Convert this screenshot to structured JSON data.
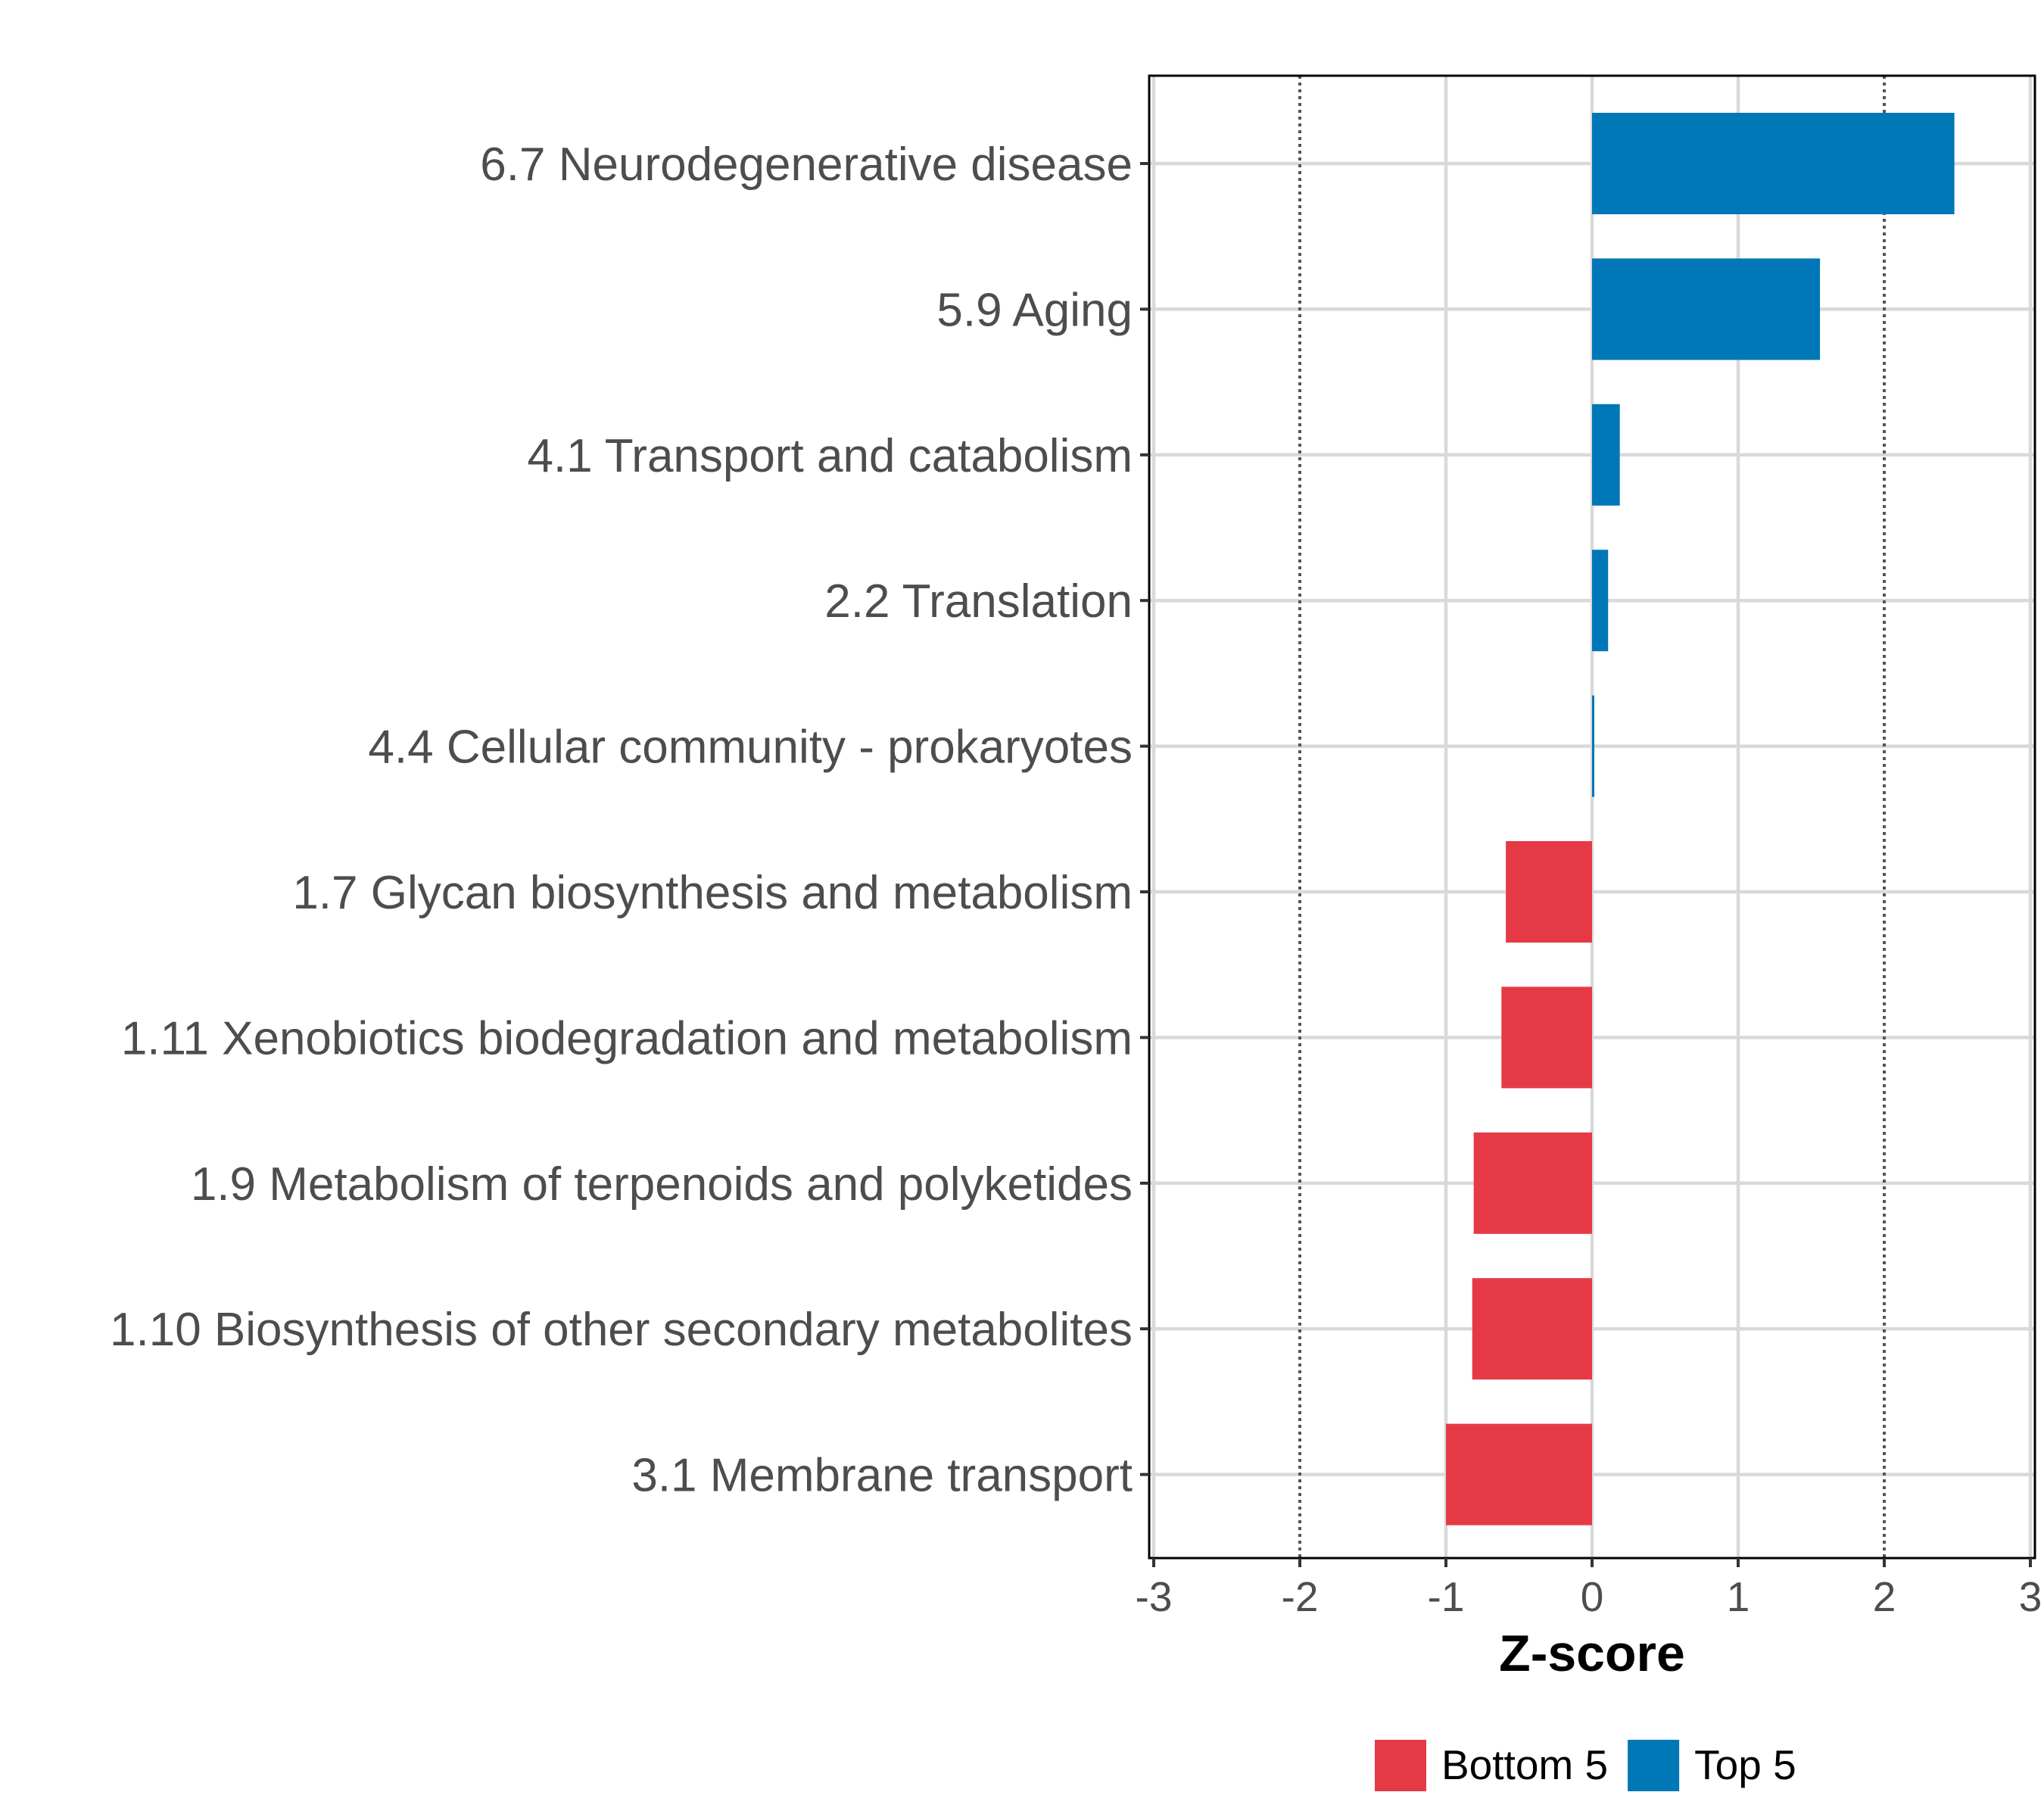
{
  "chart_data": {
    "type": "bar",
    "orientation": "horizontal",
    "title": "",
    "xlabel": "Z-score",
    "ylabel": "",
    "xlim": [
      -3,
      3
    ],
    "xticks": [
      "-3",
      "-2",
      "-1",
      "0",
      "1",
      "2",
      "3"
    ],
    "reference_lines": [
      -2,
      2
    ],
    "grid": true,
    "legend_position": "bottom",
    "categories": [
      "6.7 Neurodegenerative disease",
      "5.9 Aging",
      "4.1 Transport and catabolism",
      "2.2 Translation",
      "4.4 Cellular community - prokaryotes",
      "1.7 Glycan biosynthesis and metabolism",
      "1.11 Xenobiotics biodegradation and metabolism",
      "1.9 Metabolism of terpenoids and polyketides",
      "1.10 Biosynthesis of other secondary metabolites",
      "3.1 Membrane transport"
    ],
    "values": [
      2.48,
      1.56,
      0.19,
      0.11,
      0.01,
      -0.59,
      -0.62,
      -0.81,
      -0.82,
      -1.0
    ],
    "groups": [
      "Top 5",
      "Top 5",
      "Top 5",
      "Top 5",
      "Top 5",
      "Bottom 5",
      "Bottom 5",
      "Bottom 5",
      "Bottom 5",
      "Bottom 5"
    ],
    "legend": [
      {
        "name": "Bottom 5",
        "color": "#e63946"
      },
      {
        "name": "Top 5",
        "color": "#0077b6"
      }
    ]
  }
}
